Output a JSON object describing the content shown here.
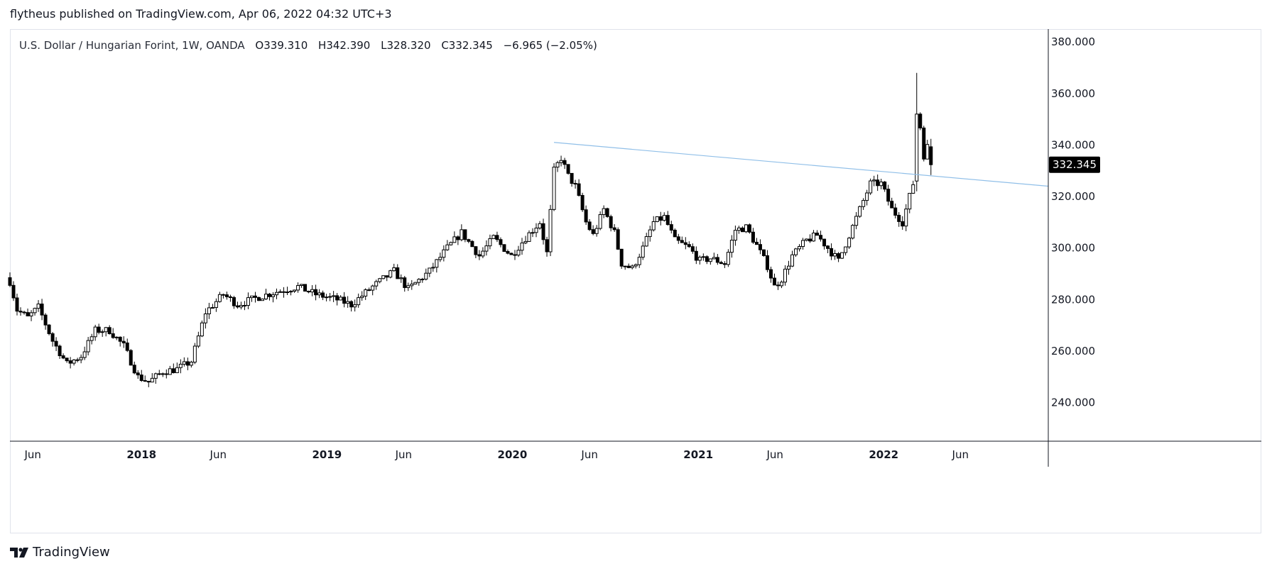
{
  "header": {
    "published_text": "flytheus published on TradingView.com, Apr 06, 2022 04:32 UTC+3"
  },
  "legend": {
    "symbol": "U.S. Dollar / Hungarian Forint, 1W, OANDA",
    "open": "O339.310",
    "high": "H342.390",
    "low": "L328.320",
    "close": "C332.345",
    "change": "−6.965 (−2.05%)"
  },
  "footer": {
    "brand": "TradingView",
    "logo_icon": "tradingview-logo-icon"
  },
  "colors": {
    "candle": "#000000",
    "trendline": "#90bfe8",
    "grid_border": "#e0e3eb",
    "price_label_bg": "#000000"
  },
  "chart_data": {
    "type": "candlestick",
    "title": "U.S. Dollar / Hungarian Forint, 1W, OANDA",
    "ylim": [
      225,
      385
    ],
    "y_ticks": [
      "380.000",
      "360.000",
      "340.000",
      "320.000",
      "300.000",
      "280.000",
      "260.000",
      "240.000"
    ],
    "x_range": [
      "2017-04-17",
      "2022-11-21"
    ],
    "x_ticks": [
      {
        "label": "Jun",
        "date": "2017-06-01",
        "bold": false
      },
      {
        "label": "2018",
        "date": "2018-01-01",
        "bold": true
      },
      {
        "label": "Jun",
        "date": "2018-06-01",
        "bold": false
      },
      {
        "label": "2019",
        "date": "2019-01-01",
        "bold": true
      },
      {
        "label": "Jun",
        "date": "2019-06-01",
        "bold": false
      },
      {
        "label": "2020",
        "date": "2020-01-01",
        "bold": true
      },
      {
        "label": "Jun",
        "date": "2020-06-01",
        "bold": false
      },
      {
        "label": "2021",
        "date": "2021-01-01",
        "bold": true
      },
      {
        "label": "Jun",
        "date": "2021-06-01",
        "bold": false
      },
      {
        "label": "2022",
        "date": "2022-01-01",
        "bold": true
      },
      {
        "label": "Jun",
        "date": "2022-06-01",
        "bold": false
      }
    ],
    "close_path": [
      [
        "2017-04-17",
        287
      ],
      [
        "2017-05-01",
        276
      ],
      [
        "2017-05-22",
        273
      ],
      [
        "2017-06-12",
        277
      ],
      [
        "2017-07-10",
        264
      ],
      [
        "2017-08-07",
        255
      ],
      [
        "2017-09-04",
        258
      ],
      [
        "2017-10-02",
        268
      ],
      [
        "2017-10-30",
        268
      ],
      [
        "2017-11-27",
        262
      ],
      [
        "2017-12-25",
        250
      ],
      [
        "2018-01-15",
        248
      ],
      [
        "2018-02-12",
        252
      ],
      [
        "2018-03-12",
        253
      ],
      [
        "2018-04-09",
        256
      ],
      [
        "2018-05-07",
        275
      ],
      [
        "2018-06-11",
        282
      ],
      [
        "2018-07-09",
        278
      ],
      [
        "2018-08-20",
        281
      ],
      [
        "2018-09-24",
        283
      ],
      [
        "2018-11-05",
        285
      ],
      [
        "2018-12-10",
        282
      ],
      [
        "2019-01-21",
        280
      ],
      [
        "2019-02-18",
        278
      ],
      [
        "2019-04-01",
        285
      ],
      [
        "2019-05-13",
        291
      ],
      [
        "2019-06-10",
        284
      ],
      [
        "2019-07-22",
        291
      ],
      [
        "2019-08-26",
        300
      ],
      [
        "2019-09-23",
        306
      ],
      [
        "2019-10-28",
        297
      ],
      [
        "2019-11-25",
        304
      ],
      [
        "2019-12-30",
        297
      ],
      [
        "2020-01-27",
        304
      ],
      [
        "2020-02-24",
        310
      ],
      [
        "2020-03-09",
        298
      ],
      [
        "2020-03-23",
        330
      ],
      [
        "2020-04-06",
        335
      ],
      [
        "2020-04-20",
        328
      ],
      [
        "2020-05-04",
        324
      ],
      [
        "2020-05-25",
        310
      ],
      [
        "2020-06-08",
        305
      ],
      [
        "2020-06-29",
        315
      ],
      [
        "2020-07-20",
        306
      ],
      [
        "2020-08-03",
        294
      ],
      [
        "2020-08-24",
        292
      ],
      [
        "2020-09-14",
        300
      ],
      [
        "2020-10-05",
        310
      ],
      [
        "2020-10-26",
        312
      ],
      [
        "2020-11-16",
        303
      ],
      [
        "2020-12-14",
        300
      ],
      [
        "2021-01-04",
        295
      ],
      [
        "2021-01-25",
        296
      ],
      [
        "2021-02-22",
        294
      ],
      [
        "2021-03-15",
        307
      ],
      [
        "2021-04-05",
        308
      ],
      [
        "2021-04-26",
        301
      ],
      [
        "2021-05-17",
        293
      ],
      [
        "2021-05-31",
        285
      ],
      [
        "2021-06-14",
        288
      ],
      [
        "2021-07-05",
        297
      ],
      [
        "2021-08-02",
        303
      ],
      [
        "2021-08-23",
        305
      ],
      [
        "2021-09-13",
        300
      ],
      [
        "2021-10-04",
        295
      ],
      [
        "2021-10-25",
        305
      ],
      [
        "2021-11-15",
        315
      ],
      [
        "2021-12-06",
        325
      ],
      [
        "2021-12-27",
        325
      ],
      [
        "2022-01-17",
        315
      ],
      [
        "2022-02-07",
        310
      ],
      [
        "2022-02-28",
        325
      ],
      [
        "2022-03-07",
        352
      ],
      [
        "2022-03-14",
        347
      ],
      [
        "2022-03-21",
        336
      ],
      [
        "2022-03-28",
        339.31
      ],
      [
        "2022-04-04",
        332.345
      ]
    ],
    "last_candle": {
      "date": "2022-04-04",
      "open": 339.31,
      "high": 342.39,
      "low": 328.32,
      "close": 332.345
    },
    "peak_high": {
      "date": "2022-03-07",
      "value": 368
    },
    "trendline": {
      "from": {
        "date": "2020-03-23",
        "value": 341
      },
      "to": {
        "date": "2022-11-21",
        "value": 324
      }
    },
    "last_price_label": "332.345"
  }
}
